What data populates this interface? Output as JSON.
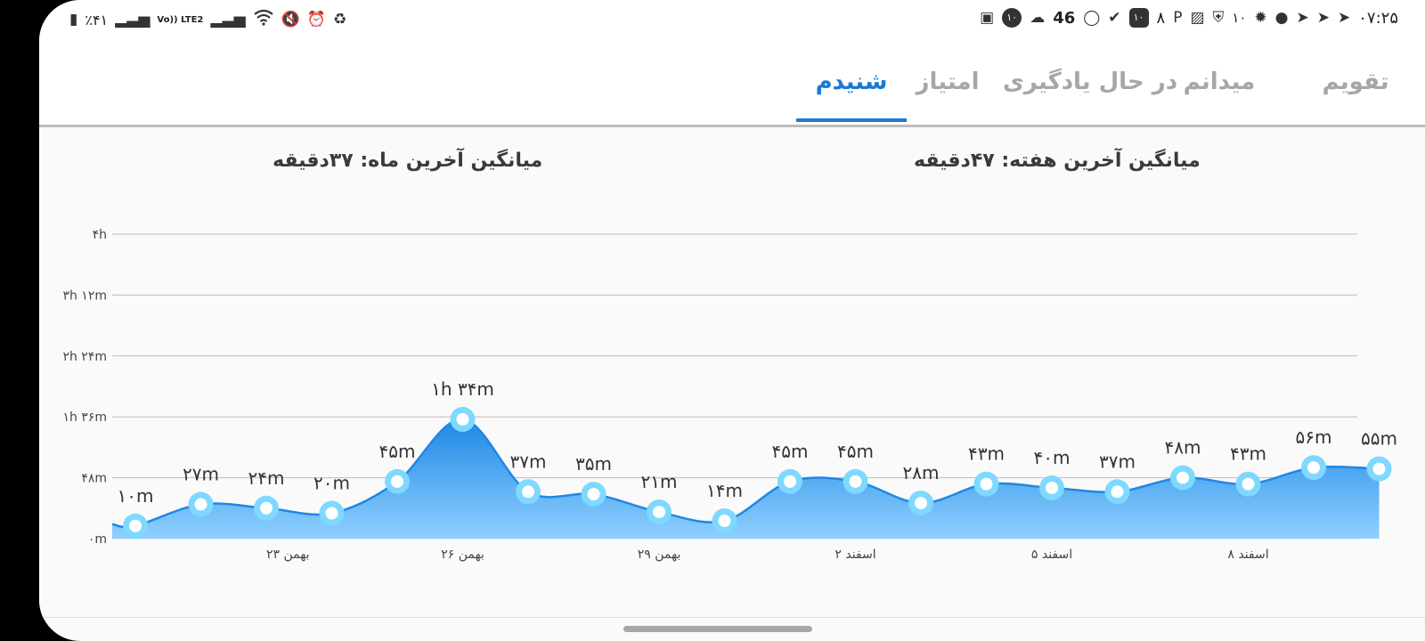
{
  "status_bar": {
    "battery": "٪۴۱",
    "network": "Vo)) LTE2",
    "time": "۰۷:۲۵",
    "temperature": "46",
    "notification_counts": [
      "۱۰",
      "۸",
      "۱۰",
      "۱۰"
    ],
    "left_icons": [
      "battery-icon",
      "signal-icon",
      "signal-icon",
      "wifi-icon",
      "mute-icon",
      "alarm-icon",
      "recycle-icon"
    ],
    "right_icons": [
      "translate-icon",
      "badge-icon",
      "cloud-icon",
      "whatsapp-icon",
      "check-icon",
      "badge-icon",
      "parking-icon",
      "gallery-icon",
      "shield-icon",
      "app-icon",
      "bag-icon",
      "telegram-icon",
      "telegram-icon",
      "telegram-icon"
    ]
  },
  "tabs": [
    {
      "label": "تقویم",
      "active": false
    },
    {
      "label": "میدانم",
      "active": false
    },
    {
      "label": "در حال یادگیری",
      "active": false
    },
    {
      "label": "امتیاز",
      "active": false
    },
    {
      "label": "شنیدم",
      "active": true
    }
  ],
  "averages": {
    "week": "میانگین آخرین هفته: ۴۷دقیقه",
    "month": "میانگین آخرین ماه: ۳۷دقیقه"
  },
  "colors": {
    "accent": "#1a78d6",
    "area_top": "#1e88e5",
    "area_bottom": "#8fd0ff",
    "point_ring": "#7fd8ff",
    "grid": "#bdbdbd"
  },
  "chart_data": {
    "type": "area",
    "ylim": [
      0,
      240
    ],
    "y_unit": "minutes",
    "y_ticks": [
      {
        "value": 0,
        "label": "۰m"
      },
      {
        "value": 48,
        "label": "۴۸m"
      },
      {
        "value": 96,
        "label": "۱h ۳۶m"
      },
      {
        "value": 144,
        "label": "۲h ۲۴m"
      },
      {
        "value": 192,
        "label": "۳h ۱۲m"
      },
      {
        "value": 240,
        "label": "۴h"
      }
    ],
    "x_tick_labels": [
      "۲۳ بهمن",
      "۲۶ بهمن",
      "۲۹ بهمن",
      "۲ اسفند",
      "۵ اسفند",
      "۸ اسفند"
    ],
    "x_tick_indices": [
      2.33,
      5,
      8,
      11,
      14,
      17
    ],
    "points": [
      {
        "value": 10,
        "label": "۱۰m"
      },
      {
        "value": 27,
        "label": "۲۷m"
      },
      {
        "value": 24,
        "label": "۲۴m"
      },
      {
        "value": 20,
        "label": "۲۰m"
      },
      {
        "value": 45,
        "label": "۴۵m"
      },
      {
        "value": 94,
        "label": "۱h ۳۴m"
      },
      {
        "value": 37,
        "label": "۳۷m"
      },
      {
        "value": 35,
        "label": "۳۵m"
      },
      {
        "value": 21,
        "label": "۲۱m"
      },
      {
        "value": 14,
        "label": "۱۴m"
      },
      {
        "value": 45,
        "label": "۴۵m"
      },
      {
        "value": 45,
        "label": "۴۵m"
      },
      {
        "value": 28,
        "label": "۲۸m"
      },
      {
        "value": 43,
        "label": "۴۳m"
      },
      {
        "value": 40,
        "label": "۴۰m"
      },
      {
        "value": 37,
        "label": "۳۷m"
      },
      {
        "value": 48,
        "label": "۴۸m"
      },
      {
        "value": 43,
        "label": "۴۳m"
      },
      {
        "value": 56,
        "label": "۵۶m"
      },
      {
        "value": 55,
        "label": "۵۵m"
      }
    ]
  }
}
